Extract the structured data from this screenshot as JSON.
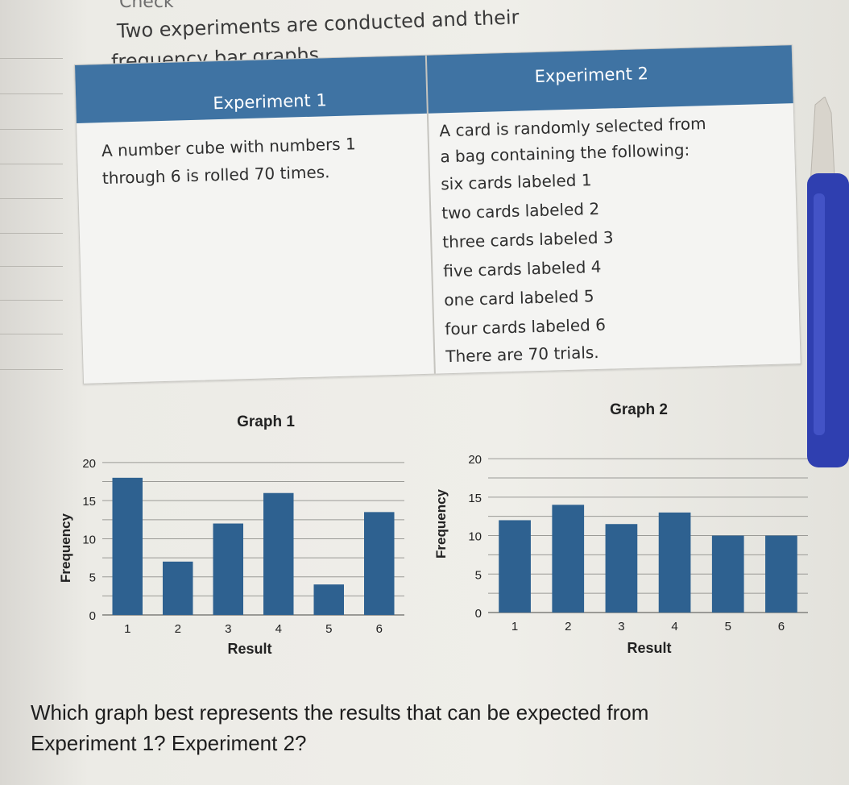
{
  "page": {
    "heading": "Check",
    "intro_line1": "Two experiments are conducted and their",
    "intro_line2": "frequency bar graphs.",
    "question_line1": "Which graph best represents the results that can be expected from",
    "question_line2": "Experiment 1? Experiment 2?"
  },
  "table": {
    "header1": "Experiment 1",
    "header2": "Experiment 2",
    "exp1_text": "A number cube with numbers 1 through 6 is rolled 70 times.",
    "exp2_lines": [
      "A card is randomly selected from",
      "a bag containing the following:",
      "six cards labeled 1",
      "two cards labeled 2",
      "three cards labeled 3",
      "five cards labeled 4",
      "one card labeled 5",
      "four cards labeled 6",
      "There are 70 trials."
    ]
  },
  "colors": {
    "bar": "#2e6190",
    "header": "#3f73a3",
    "grid": "#9a9a96"
  },
  "chart_data": [
    {
      "type": "bar",
      "title": "Graph 1",
      "xlabel": "Result",
      "ylabel": "Frequency",
      "categories": [
        "1",
        "2",
        "3",
        "4",
        "5",
        "6"
      ],
      "values": [
        18,
        7,
        12,
        16,
        4,
        13.5
      ],
      "ylim": [
        0,
        22
      ],
      "yticks": [
        0,
        5,
        10,
        15,
        20
      ],
      "grid": true
    },
    {
      "type": "bar",
      "title": "Graph 2",
      "xlabel": "Result",
      "ylabel": "Frequency",
      "categories": [
        "1",
        "2",
        "3",
        "4",
        "5",
        "6"
      ],
      "values": [
        12,
        14,
        11.5,
        13,
        10,
        10
      ],
      "ylim": [
        0,
        22
      ],
      "yticks": [
        0,
        5,
        10,
        15,
        20
      ],
      "grid": true
    }
  ]
}
